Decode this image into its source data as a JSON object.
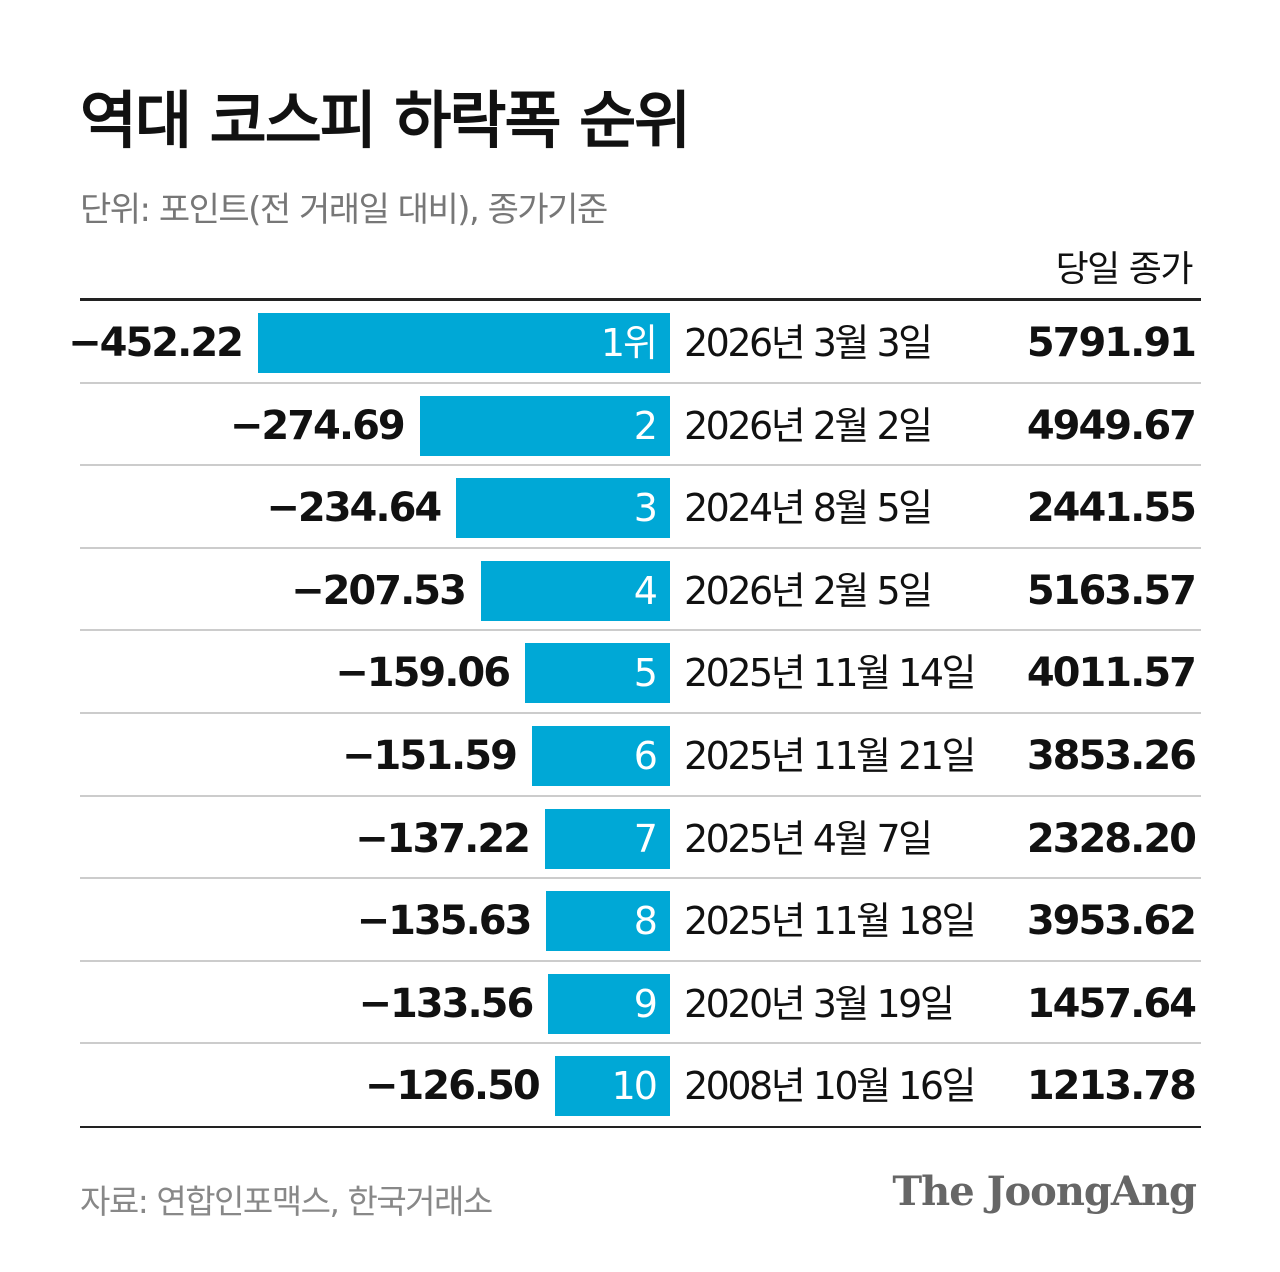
{
  "title": "역대 코스피 하락폭 순위",
  "subtitle": "단위: 포인트(전 거래일 대비), 종가기준",
  "column_header": "당일 종가",
  "source": "자료: 연합인포맥스, 한국거래소",
  "logo": "The JoongAng",
  "colors": {
    "bar": "#00A8D6",
    "divider": "#cccccc",
    "rule": "#222222"
  },
  "chart_data": {
    "type": "bar",
    "orientation": "horizontal",
    "categories": [
      "1위",
      "2",
      "3",
      "4",
      "5",
      "6",
      "7",
      "8",
      "9",
      "10"
    ],
    "values": [
      -452.22,
      -274.69,
      -234.64,
      -207.53,
      -159.06,
      -151.59,
      -137.22,
      -135.63,
      -133.56,
      -126.5
    ],
    "value_labels": [
      "−452.22",
      "−274.69",
      "−234.64",
      "−207.53",
      "−159.06",
      "−151.59",
      "−137.22",
      "−135.63",
      "−133.56",
      "−126.50"
    ],
    "dates": [
      "2026년 3월 3일",
      "2026년 2월 2일",
      "2024년 8월 5일",
      "2026년 2월 5일",
      "2025년 11월 14일",
      "2025년 11월 21일",
      "2025년 4월 7일",
      "2025년 11월 18일",
      "2020년 3월 19일",
      "2008년 10월 16일"
    ],
    "closing_prices": [
      "5791.91",
      "4949.67",
      "2441.55",
      "5163.57",
      "4011.57",
      "3853.26",
      "2328.20",
      "3953.62",
      "1457.64",
      "1213.78"
    ]
  }
}
